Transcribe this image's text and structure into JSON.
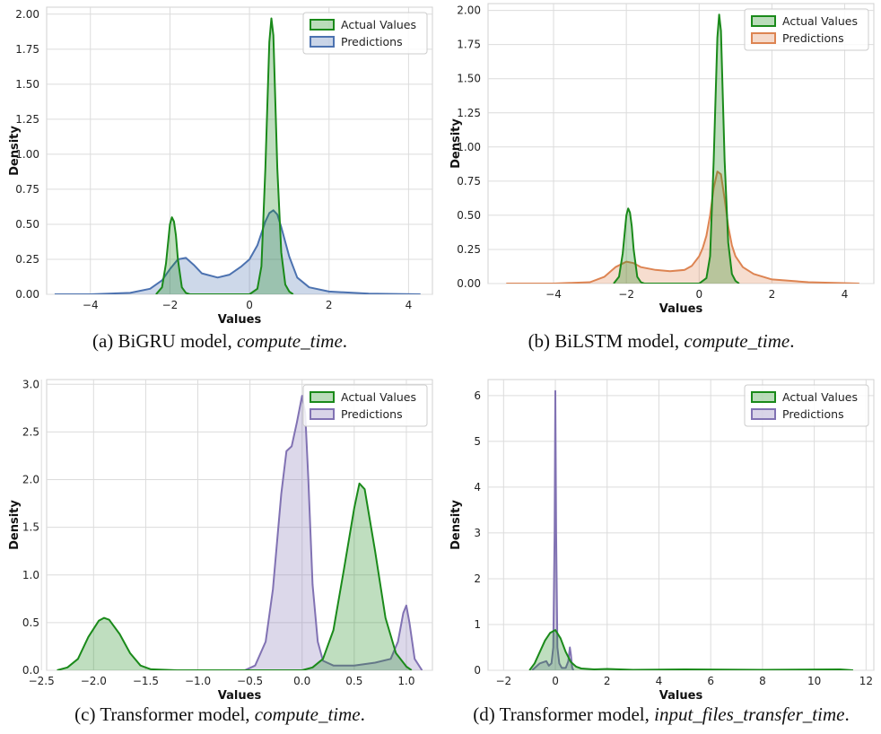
{
  "colors": {
    "actual": "#1a8a1a",
    "pred_a": "#4c72b0",
    "pred_b": "#dd8452",
    "pred_c": "#8172b3",
    "pred_d": "#8172b3",
    "grid": "#dcdcdc"
  },
  "captions": [
    {
      "prefix": "(a) BiGRU model, ",
      "var": "compute_time",
      "suffix": "."
    },
    {
      "prefix": "(b) BiLSTM model, ",
      "var": "compute_time",
      "suffix": "."
    },
    {
      "prefix": "(c) Transformer model, ",
      "var": "compute_time",
      "suffix": "."
    },
    {
      "prefix": "(d) Transformer model, ",
      "var": "input_files_transfer_time",
      "suffix": "."
    }
  ],
  "chart_data": [
    {
      "type": "area",
      "xlabel": "Values",
      "ylabel": "Density",
      "xlim": [
        -5.1,
        4.6
      ],
      "ylim": [
        0,
        2.05
      ],
      "xticks": [
        -4,
        -2,
        0,
        2,
        4
      ],
      "yticks": [
        0.0,
        0.25,
        0.5,
        0.75,
        1.0,
        1.25,
        1.5,
        1.75,
        2.0
      ],
      "ytick_labels": [
        "0.00",
        "0.25",
        "0.50",
        "0.75",
        "1.00",
        "1.25",
        "1.50",
        "1.75",
        "2.00"
      ],
      "legend_position": "top-right",
      "grid": true,
      "series": [
        {
          "name": "Actual Values",
          "color_key": "actual",
          "x": [
            -2.35,
            -2.2,
            -2.1,
            -2.0,
            -1.95,
            -1.9,
            -1.85,
            -1.8,
            -1.7,
            -1.6,
            -1.5,
            -1.2,
            -0.5,
            0.0,
            0.2,
            0.3,
            0.4,
            0.5,
            0.55,
            0.6,
            0.7,
            0.8,
            0.9,
            1.0,
            1.1
          ],
          "y": [
            0.0,
            0.05,
            0.22,
            0.5,
            0.55,
            0.52,
            0.42,
            0.25,
            0.05,
            0.01,
            0.0,
            0.0,
            0.0,
            0.0,
            0.04,
            0.2,
            0.9,
            1.8,
            1.97,
            1.85,
            0.9,
            0.3,
            0.07,
            0.02,
            0.0
          ]
        },
        {
          "name": "Predictions",
          "color_key": "pred_a",
          "x": [
            -4.9,
            -4.0,
            -3.0,
            -2.5,
            -2.2,
            -2.0,
            -1.8,
            -1.6,
            -1.4,
            -1.2,
            -0.8,
            -0.5,
            -0.2,
            0.0,
            0.2,
            0.4,
            0.5,
            0.6,
            0.7,
            0.8,
            1.0,
            1.2,
            1.5,
            2.0,
            3.0,
            4.3
          ],
          "y": [
            0.0,
            0.0,
            0.01,
            0.04,
            0.1,
            0.18,
            0.25,
            0.26,
            0.21,
            0.15,
            0.12,
            0.14,
            0.2,
            0.25,
            0.35,
            0.52,
            0.58,
            0.6,
            0.57,
            0.48,
            0.27,
            0.12,
            0.05,
            0.02,
            0.005,
            0.0
          ]
        }
      ]
    },
    {
      "type": "area",
      "xlabel": "Values",
      "ylabel": "Density",
      "xlim": [
        -5.8,
        4.8
      ],
      "ylim": [
        0,
        2.05
      ],
      "xticks": [
        -4,
        -2,
        0,
        2,
        4
      ],
      "yticks": [
        0.0,
        0.25,
        0.5,
        0.75,
        1.0,
        1.25,
        1.5,
        1.75,
        2.0
      ],
      "ytick_labels": [
        "0.00",
        "0.25",
        "0.50",
        "0.75",
        "1.00",
        "1.25",
        "1.50",
        "1.75",
        "2.00"
      ],
      "legend_position": "top-right",
      "grid": true,
      "series": [
        {
          "name": "Actual Values",
          "color_key": "actual",
          "x": [
            -2.35,
            -2.2,
            -2.1,
            -2.0,
            -1.95,
            -1.9,
            -1.85,
            -1.8,
            -1.7,
            -1.6,
            -1.5,
            -1.2,
            -0.5,
            0.0,
            0.2,
            0.3,
            0.4,
            0.5,
            0.55,
            0.6,
            0.7,
            0.8,
            0.9,
            1.0,
            1.1
          ],
          "y": [
            0.0,
            0.05,
            0.22,
            0.5,
            0.55,
            0.52,
            0.42,
            0.25,
            0.05,
            0.01,
            0.0,
            0.0,
            0.0,
            0.0,
            0.04,
            0.2,
            0.9,
            1.8,
            1.97,
            1.85,
            0.9,
            0.3,
            0.07,
            0.02,
            0.0
          ]
        },
        {
          "name": "Predictions",
          "color_key": "pred_b",
          "x": [
            -5.3,
            -4.0,
            -3.0,
            -2.6,
            -2.3,
            -2.0,
            -1.8,
            -1.6,
            -1.2,
            -0.8,
            -0.4,
            -0.2,
            0.0,
            0.1,
            0.2,
            0.3,
            0.4,
            0.5,
            0.6,
            0.7,
            0.8,
            0.9,
            1.0,
            1.2,
            1.5,
            2.0,
            3.0,
            4.4
          ],
          "y": [
            0.0,
            0.0,
            0.01,
            0.05,
            0.12,
            0.16,
            0.15,
            0.12,
            0.1,
            0.09,
            0.1,
            0.13,
            0.2,
            0.26,
            0.35,
            0.5,
            0.7,
            0.82,
            0.8,
            0.62,
            0.42,
            0.28,
            0.2,
            0.12,
            0.07,
            0.03,
            0.01,
            0.0
          ]
        }
      ]
    },
    {
      "type": "area",
      "xlabel": "Values",
      "ylabel": "Density",
      "xlim": [
        -2.45,
        1.25
      ],
      "ylim": [
        0,
        3.05
      ],
      "xticks": [
        -2.5,
        -2.0,
        -1.5,
        -1.0,
        -0.5,
        0.0,
        0.5,
        1.0
      ],
      "xtick_labels": [
        "−2.5",
        "−2.0",
        "−1.5",
        "−1.0",
        "−0.5",
        "0.0",
        "0.5",
        "1.0"
      ],
      "yticks": [
        0.0,
        0.5,
        1.0,
        1.5,
        2.0,
        2.5,
        3.0
      ],
      "ytick_labels": [
        "0.0",
        "0.5",
        "1.0",
        "1.5",
        "2.0",
        "2.5",
        "3.0"
      ],
      "legend_position": "top-right",
      "grid": true,
      "series": [
        {
          "name": "Actual Values",
          "color_key": "actual",
          "x": [
            -2.35,
            -2.25,
            -2.15,
            -2.05,
            -1.95,
            -1.9,
            -1.85,
            -1.75,
            -1.65,
            -1.55,
            -1.45,
            -1.2,
            -0.5,
            0.0,
            0.1,
            0.2,
            0.3,
            0.4,
            0.5,
            0.55,
            0.6,
            0.7,
            0.8,
            0.9,
            1.0,
            1.05
          ],
          "y": [
            0.0,
            0.03,
            0.12,
            0.35,
            0.52,
            0.55,
            0.53,
            0.38,
            0.18,
            0.05,
            0.01,
            0.0,
            0.0,
            0.0,
            0.03,
            0.12,
            0.42,
            1.05,
            1.7,
            1.96,
            1.9,
            1.25,
            0.55,
            0.18,
            0.04,
            0.0
          ]
        },
        {
          "name": "Predictions",
          "color_key": "pred_c",
          "x": [
            -0.55,
            -0.45,
            -0.35,
            -0.28,
            -0.2,
            -0.15,
            -0.1,
            -0.05,
            0.0,
            0.03,
            0.06,
            0.1,
            0.15,
            0.2,
            0.3,
            0.5,
            0.7,
            0.85,
            0.92,
            0.97,
            1.0,
            1.03,
            1.08,
            1.15
          ],
          "y": [
            0.0,
            0.05,
            0.3,
            0.85,
            1.85,
            2.3,
            2.35,
            2.6,
            2.88,
            2.7,
            2.0,
            0.9,
            0.3,
            0.1,
            0.05,
            0.05,
            0.08,
            0.12,
            0.3,
            0.6,
            0.68,
            0.5,
            0.12,
            0.0
          ]
        }
      ]
    },
    {
      "type": "area",
      "xlabel": "Values",
      "ylabel": "Density",
      "xlim": [
        -2.6,
        12.3
      ],
      "ylim": [
        0,
        6.35
      ],
      "xticks": [
        -2,
        0,
        2,
        4,
        6,
        8,
        10,
        12
      ],
      "xtick_labels": [
        "−2",
        "0",
        "2",
        "4",
        "6",
        "8",
        "10",
        "12"
      ],
      "yticks": [
        0,
        1,
        2,
        3,
        4,
        5,
        6
      ],
      "ytick_labels": [
        "0",
        "1",
        "2",
        "3",
        "4",
        "5",
        "6"
      ],
      "legend_position": "top-right",
      "grid": true,
      "series": [
        {
          "name": "Actual Values",
          "color_key": "actual",
          "x": [
            -1.0,
            -0.8,
            -0.6,
            -0.4,
            -0.2,
            0.0,
            0.2,
            0.4,
            0.6,
            0.8,
            1.0,
            1.5,
            2.0,
            3.0,
            5.0,
            8.0,
            11.0,
            11.5
          ],
          "y": [
            0.0,
            0.15,
            0.4,
            0.65,
            0.82,
            0.88,
            0.7,
            0.4,
            0.18,
            0.08,
            0.04,
            0.02,
            0.03,
            0.01,
            0.02,
            0.01,
            0.02,
            0.0
          ]
        },
        {
          "name": "Predictions",
          "color_key": "pred_d",
          "x": [
            -0.9,
            -0.6,
            -0.35,
            -0.25,
            -0.15,
            -0.08,
            -0.03,
            0.0,
            0.03,
            0.08,
            0.15,
            0.25,
            0.4,
            0.5,
            0.56,
            0.6,
            0.65,
            0.7
          ],
          "y": [
            0.0,
            0.15,
            0.2,
            0.1,
            0.15,
            0.5,
            3.0,
            6.1,
            3.0,
            0.5,
            0.15,
            0.05,
            0.05,
            0.2,
            0.5,
            0.35,
            0.05,
            0.0
          ]
        }
      ]
    }
  ]
}
